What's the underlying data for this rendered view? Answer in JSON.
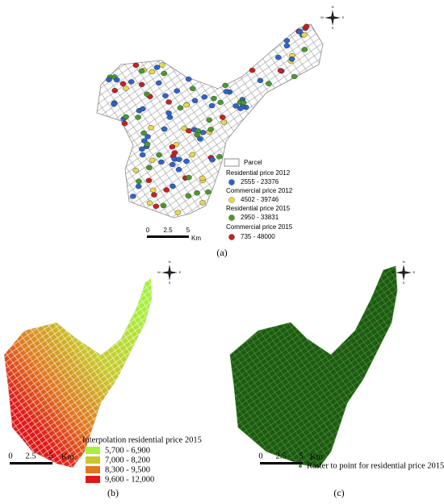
{
  "compass": [
    "N",
    "E",
    "S",
    "W"
  ],
  "panel_a": {
    "legend": {
      "parcel": "Parcel",
      "items": [
        {
          "title": "Residential price 2012",
          "range": "2555 - 23376"
        },
        {
          "title": "Commercial price 2012",
          "range": "4502 - 39746"
        },
        {
          "title": "Residential price 2015",
          "range": "2950 - 33831"
        },
        {
          "title": "Commercial price 2015",
          "range": "735 - 48000"
        }
      ]
    },
    "scale": {
      "ticks": [
        "0",
        "2.5",
        "5"
      ],
      "unit": "Km"
    },
    "caption": "(a)"
  },
  "panel_b": {
    "legend": {
      "title": "Interpolation residential price 2015",
      "items": [
        "5,700 - 6,900",
        "7,000 - 8,200",
        "8,300 - 9,500",
        "9,600 - 12,000"
      ]
    },
    "scale": {
      "ticks": [
        "0",
        "2.5",
        "5"
      ],
      "unit": "Km"
    },
    "caption": "(b)"
  },
  "panel_c": {
    "legend": "Raster to point for residential price 2015",
    "scale": {
      "ticks": [
        "0",
        "2.5",
        "5"
      ],
      "unit": "Km"
    },
    "caption": "(c)"
  }
}
